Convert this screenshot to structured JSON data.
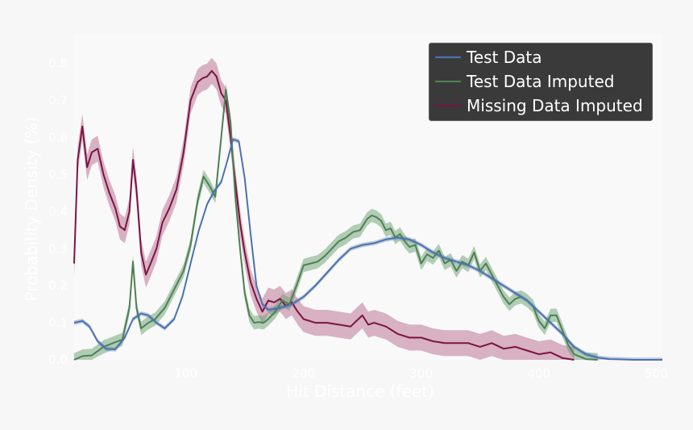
{
  "chart_data": {
    "type": "line",
    "title": "",
    "xlabel": "Hit Distance (feet)",
    "ylabel": "Probability Density (%)",
    "xlim": [
      5,
      505
    ],
    "ylim": [
      0,
      0.88
    ],
    "x_ticks": [
      {
        "value": 100,
        "label": "100"
      },
      {
        "value": 200,
        "label": "200"
      },
      {
        "value": 300,
        "label": "300"
      },
      {
        "value": 400,
        "label": "400"
      },
      {
        "value": 500,
        "label": "500"
      }
    ],
    "y_ticks": [
      {
        "value": 0.0,
        "label": "0.0"
      },
      {
        "value": 0.1,
        "label": "0.1"
      },
      {
        "value": 0.2,
        "label": "0.2"
      },
      {
        "value": 0.3,
        "label": "0.3"
      },
      {
        "value": 0.4,
        "label": "0.4"
      },
      {
        "value": 0.5,
        "label": "0.5"
      },
      {
        "value": 0.6,
        "label": "0.6"
      },
      {
        "value": 0.7,
        "label": "0.7"
      },
      {
        "value": 0.8,
        "label": "0.8"
      }
    ],
    "grid": false,
    "legend_position": "top-right",
    "series": [
      {
        "name": "Test Data",
        "color": "#4c72b0",
        "band_color": "#4c72b0",
        "band_width": 0.006,
        "x": [
          5,
          12,
          18,
          25,
          32,
          40,
          48,
          55,
          62,
          68,
          75,
          82,
          90,
          97,
          104,
          111,
          118,
          124,
          130,
          135,
          140,
          145,
          150,
          155,
          160,
          165,
          170,
          180,
          190,
          200,
          210,
          220,
          230,
          240,
          250,
          260,
          270,
          280,
          290,
          300,
          310,
          320,
          330,
          340,
          350,
          360,
          370,
          380,
          390,
          400,
          410,
          420,
          430,
          440,
          450,
          460,
          470,
          480,
          490,
          505
        ],
        "y": [
          0.1,
          0.105,
          0.09,
          0.05,
          0.03,
          0.028,
          0.06,
          0.11,
          0.125,
          0.12,
          0.1,
          0.085,
          0.11,
          0.17,
          0.26,
          0.35,
          0.42,
          0.455,
          0.48,
          0.535,
          0.595,
          0.59,
          0.49,
          0.34,
          0.2,
          0.15,
          0.135,
          0.14,
          0.15,
          0.17,
          0.2,
          0.235,
          0.27,
          0.3,
          0.31,
          0.315,
          0.325,
          0.33,
          0.325,
          0.31,
          0.29,
          0.275,
          0.265,
          0.255,
          0.24,
          0.22,
          0.2,
          0.18,
          0.16,
          0.13,
          0.1,
          0.07,
          0.035,
          0.015,
          0.006,
          0.002,
          0.001,
          0.0,
          0.0,
          0.0
        ]
      },
      {
        "name": "Test Data Imputed",
        "color": "#4e8055",
        "band_color": "#6aa06f",
        "band_width": 0.018,
        "x": [
          5,
          12,
          20,
          30,
          38,
          46,
          52,
          55,
          58,
          62,
          68,
          74,
          82,
          90,
          98,
          104,
          110,
          115,
          120,
          125,
          130,
          134,
          138,
          142,
          146,
          150,
          154,
          158,
          162,
          166,
          170,
          176,
          182,
          188,
          194,
          200,
          206,
          212,
          218,
          224,
          230,
          236,
          242,
          248,
          254,
          258,
          262,
          266,
          270,
          274,
          278,
          282,
          286,
          290,
          295,
          300,
          305,
          310,
          315,
          320,
          325,
          330,
          335,
          340,
          345,
          350,
          355,
          360,
          365,
          370,
          375,
          380,
          385,
          390,
          395,
          400,
          405,
          410,
          415,
          420,
          425,
          430,
          440,
          450
        ],
        "y": [
          0.0,
          0.01,
          0.012,
          0.035,
          0.045,
          0.055,
          0.14,
          0.265,
          0.14,
          0.085,
          0.1,
          0.11,
          0.14,
          0.19,
          0.24,
          0.31,
          0.43,
          0.495,
          0.47,
          0.44,
          0.6,
          0.73,
          0.64,
          0.44,
          0.3,
          0.18,
          0.12,
          0.1,
          0.102,
          0.1,
          0.11,
          0.13,
          0.16,
          0.15,
          0.2,
          0.255,
          0.26,
          0.265,
          0.28,
          0.3,
          0.32,
          0.33,
          0.345,
          0.35,
          0.38,
          0.39,
          0.385,
          0.375,
          0.35,
          0.355,
          0.33,
          0.34,
          0.32,
          0.305,
          0.31,
          0.26,
          0.285,
          0.275,
          0.295,
          0.26,
          0.27,
          0.24,
          0.265,
          0.255,
          0.29,
          0.24,
          0.26,
          0.23,
          0.2,
          0.17,
          0.15,
          0.165,
          0.17,
          0.16,
          0.145,
          0.105,
          0.085,
          0.12,
          0.12,
          0.08,
          0.04,
          0.015,
          0.002,
          0.0
        ]
      },
      {
        "name": "Missing Data Imputed",
        "color": "#7a1543",
        "band_color": "#b86a8c",
        "band_width": 0.035,
        "x": [
          5,
          8,
          12,
          16,
          20,
          25,
          30,
          35,
          40,
          44,
          48,
          52,
          55,
          58,
          62,
          66,
          70,
          75,
          80,
          86,
          92,
          98,
          104,
          110,
          114,
          118,
          122,
          126,
          130,
          134,
          138,
          142,
          146,
          150,
          155,
          160,
          165,
          170,
          175,
          180,
          185,
          190,
          195,
          200,
          210,
          220,
          230,
          240,
          250,
          255,
          260,
          270,
          280,
          290,
          300,
          310,
          320,
          330,
          340,
          350,
          360,
          370,
          380,
          390,
          400,
          410,
          420,
          430
        ],
        "y": [
          0.26,
          0.54,
          0.63,
          0.52,
          0.56,
          0.57,
          0.5,
          0.45,
          0.41,
          0.36,
          0.35,
          0.4,
          0.54,
          0.46,
          0.29,
          0.23,
          0.26,
          0.3,
          0.37,
          0.41,
          0.46,
          0.56,
          0.7,
          0.75,
          0.76,
          0.765,
          0.78,
          0.765,
          0.72,
          0.7,
          0.6,
          0.48,
          0.37,
          0.29,
          0.21,
          0.165,
          0.13,
          0.16,
          0.155,
          0.165,
          0.145,
          0.155,
          0.13,
          0.11,
          0.1,
          0.1,
          0.095,
          0.09,
          0.12,
          0.095,
          0.1,
          0.09,
          0.07,
          0.06,
          0.06,
          0.05,
          0.045,
          0.045,
          0.045,
          0.035,
          0.045,
          0.03,
          0.035,
          0.025,
          0.015,
          0.02,
          0.005,
          0.0
        ]
      }
    ]
  }
}
